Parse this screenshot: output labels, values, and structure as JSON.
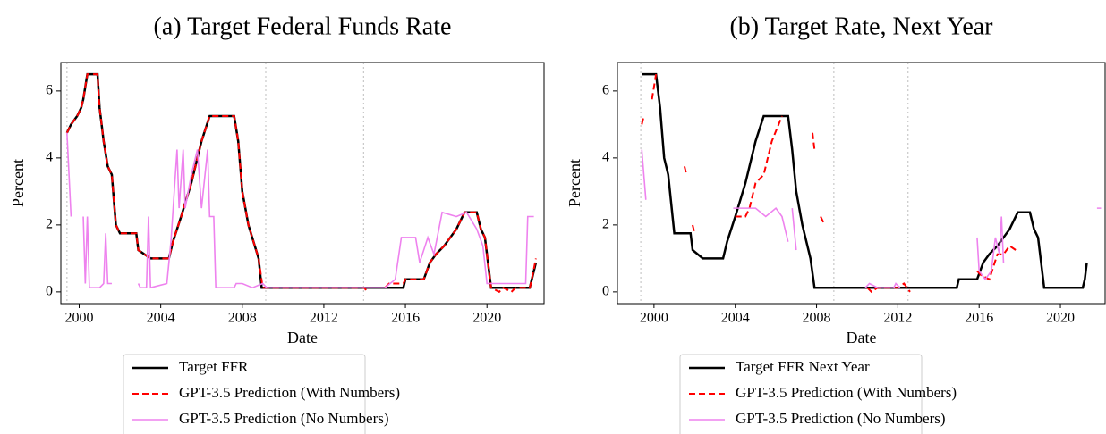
{
  "chart_data": [
    {
      "type": "line",
      "title": "(a) Target Federal Funds Rate",
      "x_label": "Date",
      "y_label": "Percent",
      "xlim": [
        1999.1,
        2022.8
      ],
      "ylim": [
        -0.35,
        6.85
      ],
      "xticks": [
        2000,
        2004,
        2008,
        2012,
        2016,
        2020
      ],
      "yticks": [
        0,
        2,
        4,
        6
      ],
      "vlines": [
        1999.4,
        2009.15,
        2013.95
      ],
      "vline_color": "#c8c8c8",
      "legend": "below",
      "series": [
        {
          "name": "Target FFR",
          "color": "#000000",
          "style": "solid",
          "x": [
            1999.4,
            1999.6,
            1999.9,
            2000.1,
            2000.2,
            2000.4,
            2000.9,
            2001.0,
            2001.2,
            2001.4,
            2001.6,
            2001.8,
            2002.0,
            2002.8,
            2002.9,
            2003.5,
            2004.4,
            2004.6,
            2005.0,
            2005.5,
            2006.0,
            2006.4,
            2007.6,
            2007.8,
            2008.0,
            2008.3,
            2008.8,
            2008.95,
            2015.9,
            2016.0,
            2016.9,
            2017.2,
            2017.5,
            2017.9,
            2018.2,
            2018.5,
            2018.9,
            2019.5,
            2019.7,
            2019.9,
            2020.2,
            2022.1,
            2022.2,
            2022.4
          ],
          "values": [
            4.75,
            5.0,
            5.25,
            5.5,
            5.75,
            6.5,
            6.5,
            5.5,
            4.5,
            3.75,
            3.5,
            2.0,
            1.75,
            1.75,
            1.25,
            1.0,
            1.0,
            1.5,
            2.25,
            3.25,
            4.5,
            5.25,
            5.25,
            4.5,
            3.0,
            2.0,
            1.0,
            0.125,
            0.125,
            0.375,
            0.375,
            0.875,
            1.125,
            1.375,
            1.625,
            1.875,
            2.375,
            2.375,
            1.875,
            1.625,
            0.125,
            0.125,
            0.375,
            0.875
          ]
        },
        {
          "name": "GPT-3.5 Prediction (With Numbers)",
          "color": "#ff0000",
          "style": "dashed",
          "x": [
            1999.4,
            1999.6,
            1999.9,
            2000.1,
            2000.2,
            2000.4,
            2000.9,
            2001.0,
            2001.2,
            2001.4,
            2001.6,
            2001.8,
            2002.0,
            2002.8,
            2002.9,
            2003.5,
            2004.4,
            2004.6,
            2005.0,
            2005.5,
            2006.0,
            2006.4,
            2007.6,
            2007.8,
            2008.0,
            2008.3,
            2008.8,
            2009.0,
            2014.0,
            2014.1,
            2014.2,
            2015.0,
            2015.2,
            2015.9,
            2016.0,
            2016.9,
            2017.2,
            2017.5,
            2017.9,
            2018.2,
            2018.5,
            2018.9,
            2019.5,
            2019.7,
            2019.9,
            2020.2,
            2020.6,
            2020.8,
            2021.2,
            2021.4,
            2022.1,
            2022.2,
            2022.4
          ],
          "values": [
            4.75,
            5.0,
            5.25,
            5.5,
            5.75,
            6.5,
            6.5,
            5.5,
            4.5,
            3.75,
            3.5,
            2.0,
            1.75,
            1.75,
            1.25,
            1.0,
            1.0,
            1.5,
            2.25,
            3.25,
            4.5,
            5.25,
            5.25,
            4.5,
            3.0,
            2.0,
            1.0,
            0.125,
            0.125,
            0.0,
            null,
            0.125,
            0.25,
            0.25,
            0.375,
            0.375,
            0.875,
            1.125,
            1.375,
            1.625,
            1.875,
            2.375,
            2.375,
            1.875,
            1.625,
            0.125,
            0.0,
            0.125,
            0.0,
            0.125,
            0.125,
            0.375,
            1.0
          ]
        },
        {
          "name": "GPT-3.5 Prediction (No Numbers)",
          "color": "#ee82ee",
          "style": "solid",
          "x": [
            1999.4,
            1999.6,
            1999.9,
            2000.2,
            2000.3,
            2000.4,
            2000.5,
            2001.0,
            2001.2,
            2001.3,
            2001.4,
            2001.6,
            2002.3,
            2002.9,
            2003.0,
            2003.3,
            2003.4,
            2003.5,
            2004.3,
            2004.5,
            2004.8,
            2004.9,
            2005.1,
            2005.2,
            2005.5,
            2005.8,
            2006.0,
            2006.3,
            2006.4,
            2006.6,
            2006.7,
            2007.6,
            2007.7,
            2008.0,
            2008.5,
            2009.0,
            2009.2,
            2015.0,
            2015.5,
            2015.8,
            2016.5,
            2016.7,
            2017.1,
            2017.4,
            2017.8,
            2018.5,
            2019.0,
            2019.5,
            2019.8,
            2020.0,
            2021.9,
            2022.0,
            2022.3
          ],
          "values": [
            4.75,
            2.25,
            null,
            2.25,
            0.25,
            2.25,
            0.125,
            0.125,
            0.25,
            1.75,
            0.25,
            0.25,
            null,
            0.25,
            0.125,
            0.125,
            2.25,
            0.125,
            0.25,
            1.5,
            4.25,
            2.5,
            4.25,
            2.5,
            3.5,
            4.25,
            2.5,
            4.25,
            2.25,
            2.25,
            0.125,
            0.125,
            0.25,
            0.25,
            0.125,
            0.25,
            0.125,
            0.125,
            0.375,
            1.625,
            1.625,
            0.875,
            1.625,
            1.125,
            2.375,
            2.25,
            2.375,
            1.875,
            1.375,
            0.25,
            0.25,
            2.25,
            2.25
          ]
        }
      ]
    },
    {
      "type": "line",
      "title": "(b) Target Rate, Next Year",
      "x_label": "Date",
      "y_label": "Percent",
      "xlim": [
        1998.2,
        2022.2
      ],
      "ylim": [
        -0.35,
        6.85
      ],
      "xticks": [
        2000,
        2004,
        2008,
        2012,
        2016,
        2020
      ],
      "yticks": [
        0,
        2,
        4,
        6
      ],
      "vlines": [
        1999.35,
        2008.85,
        2012.5
      ],
      "vline_color": "#c8c8c8",
      "legend": "below",
      "series": [
        {
          "name": "Target FFR Next Year",
          "color": "#000000",
          "style": "solid",
          "x": [
            1999.4,
            2000.1,
            2000.3,
            2000.5,
            2000.7,
            2001.0,
            2001.8,
            2001.9,
            2002.4,
            2003.4,
            2003.6,
            2004.0,
            2004.5,
            2005.0,
            2005.4,
            2006.6,
            2006.8,
            2007.0,
            2007.3,
            2007.7,
            2007.9,
            2014.9,
            2015.0,
            2015.9,
            2016.2,
            2016.5,
            2016.9,
            2017.2,
            2017.5,
            2017.9,
            2018.5,
            2018.7,
            2018.9,
            2019.2,
            2021.1,
            2021.2,
            2021.3
          ],
          "values": [
            6.5,
            6.5,
            5.5,
            4.0,
            3.5,
            1.75,
            1.75,
            1.25,
            1.0,
            1.0,
            1.5,
            2.25,
            3.25,
            4.5,
            5.25,
            5.25,
            4.25,
            3.0,
            2.0,
            1.0,
            0.125,
            0.125,
            0.375,
            0.375,
            0.875,
            1.125,
            1.375,
            1.625,
            1.875,
            2.375,
            2.375,
            1.875,
            1.625,
            0.125,
            0.125,
            0.375,
            0.875
          ]
        },
        {
          "name": "GPT-3.5 Prediction (With Numbers)",
          "color": "#ff0000",
          "style": "dashed",
          "x": [
            1999.4,
            1999.5,
            1999.7,
            1999.9,
            2000.1,
            2000.8,
            2001.5,
            2001.6,
            2001.75,
            2001.9,
            2002.0,
            2003.0,
            2004.0,
            2004.5,
            2004.7,
            2005.0,
            2005.4,
            2005.8,
            2006.3,
            2007.0,
            2007.8,
            2007.9,
            2008.0,
            2008.2,
            2008.4,
            2008.7,
            2009.1,
            2010.0,
            2010.5,
            2010.7,
            2011.0,
            2012.0,
            2012.3,
            2012.6,
            2014.0,
            2015.9,
            2016.1,
            2016.5,
            2016.9,
            2017.2,
            2017.5,
            2017.8
          ],
          "values": [
            5.0,
            5.25,
            null,
            5.75,
            6.5,
            null,
            3.75,
            3.5,
            null,
            2.0,
            1.75,
            null,
            2.25,
            2.25,
            2.5,
            3.25,
            3.5,
            4.5,
            5.25,
            null,
            4.75,
            4.25,
            null,
            2.25,
            2.0,
            null,
            0.0,
            null,
            0.125,
            0.0,
            0.125,
            0.125,
            0.25,
            0.0,
            null,
            0.625,
            0.5,
            0.375,
            1.125,
            1.125,
            1.375,
            1.25
          ]
        },
        {
          "name": "GPT-3.5 Prediction (No Numbers)",
          "color": "#ee82ee",
          "style": "solid",
          "x": [
            1999.4,
            1999.6,
            2001.5,
            2003.9,
            2005.0,
            2005.5,
            2006.0,
            2006.3,
            2006.6,
            2006.7,
            2006.8,
            2007.0,
            2008.5,
            2010.4,
            2010.6,
            2011.0,
            2011.8,
            2011.9,
            2012.1,
            2014.0,
            2015.9,
            2016.0,
            2016.3,
            2016.6,
            2016.8,
            2017.0,
            2017.1,
            2017.2,
            2019.5,
            2021.8,
            2022.0
          ],
          "values": [
            4.25,
            2.75,
            null,
            2.5,
            2.5,
            2.25,
            2.5,
            2.25,
            1.5,
            null,
            2.5,
            1.25,
            null,
            0.125,
            0.25,
            0.125,
            0.125,
            0.25,
            0.125,
            null,
            1.625,
            0.625,
            0.375,
            0.625,
            1.625,
            1.125,
            2.25,
            0.875,
            null,
            2.5,
            2.5
          ]
        }
      ]
    }
  ]
}
